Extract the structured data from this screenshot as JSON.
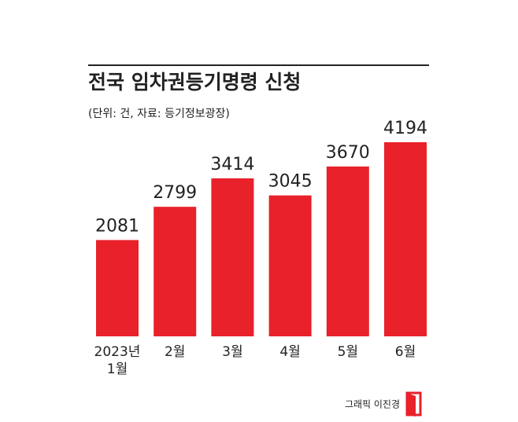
{
  "chart_data": {
    "type": "bar",
    "title": "전국 임차권등기명령 신청",
    "subtitle": "(단위: 건, 자료: 등기정보광장)",
    "categories": [
      "2023년\n1월",
      "2월",
      "3월",
      "4월",
      "5월",
      "6월"
    ],
    "values": [
      2081,
      2799,
      3414,
      3045,
      3670,
      4194
    ],
    "color": "#e8212b",
    "credit": "그래픽 이진경"
  }
}
